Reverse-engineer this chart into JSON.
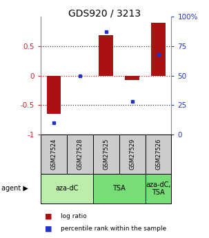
{
  "title": "GDS920 / 3213",
  "samples": [
    "GSM27524",
    "GSM27528",
    "GSM27525",
    "GSM27529",
    "GSM27526"
  ],
  "log_ratio": [
    -0.65,
    0.0,
    0.68,
    -0.08,
    0.9
  ],
  "percentile": [
    10,
    50,
    87,
    28,
    68
  ],
  "bar_color": "#aa1111",
  "dot_color": "#2233cc",
  "ylim_left": [
    -1,
    1
  ],
  "ylim_right": [
    0,
    100
  ],
  "yticks_left": [
    -1,
    -0.5,
    0,
    0.5
  ],
  "ytick_labels_left": [
    "-1",
    "-0.5",
    "0",
    "0.5"
  ],
  "yticks_right": [
    0,
    25,
    50,
    75,
    100
  ],
  "ytick_labels_right": [
    "0",
    "25",
    "50",
    "75",
    "100%"
  ],
  "hlines": [
    -0.5,
    0.0,
    0.5
  ],
  "hline_colors": [
    "#333333",
    "#cc2222",
    "#333333"
  ],
  "bar_width": 0.55,
  "background_color": "#ffffff",
  "left_label_color": "#cc2222",
  "right_label_color": "#2233cc",
  "sample_box_color": "#cccccc",
  "agent_groups": [
    {
      "label": "aza-dC",
      "start": 0,
      "end": 2,
      "color": "#bbeeaa"
    },
    {
      "label": "TSA",
      "start": 2,
      "end": 4,
      "color": "#77dd77"
    },
    {
      "label": "aza-dC,\nTSA",
      "start": 4,
      "end": 5,
      "color": "#77dd77"
    }
  ],
  "legend": [
    {
      "color": "#aa1111",
      "label": "log ratio"
    },
    {
      "color": "#2233cc",
      "label": "percentile rank within the sample"
    }
  ]
}
